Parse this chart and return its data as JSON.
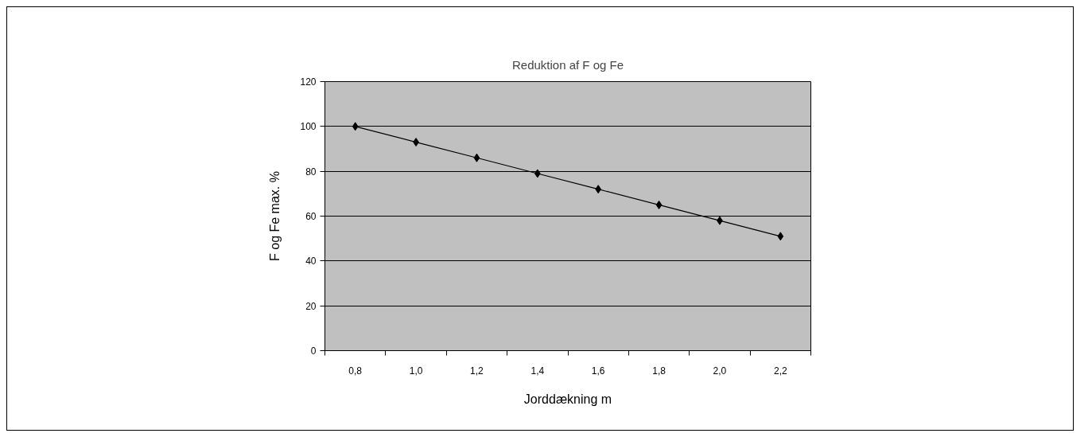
{
  "chart_data": {
    "type": "line",
    "title": "Reduktion af F og Fe",
    "xlabel": "Jorddækning m",
    "ylabel": "F og Fe max. %",
    "categories": [
      "0,8",
      "1,0",
      "1,2",
      "1,4",
      "1,6",
      "1,8",
      "2,0",
      "2,2"
    ],
    "series": [
      {
        "color": "#000000",
        "values": [
          100,
          93,
          86,
          79,
          72,
          65,
          58,
          51
        ]
      }
    ],
    "ylim": [
      0,
      120
    ],
    "yticks": [
      0,
      20,
      40,
      60,
      80,
      100,
      120
    ],
    "grid": "y",
    "marker": "diamond",
    "line_style": "solid"
  }
}
